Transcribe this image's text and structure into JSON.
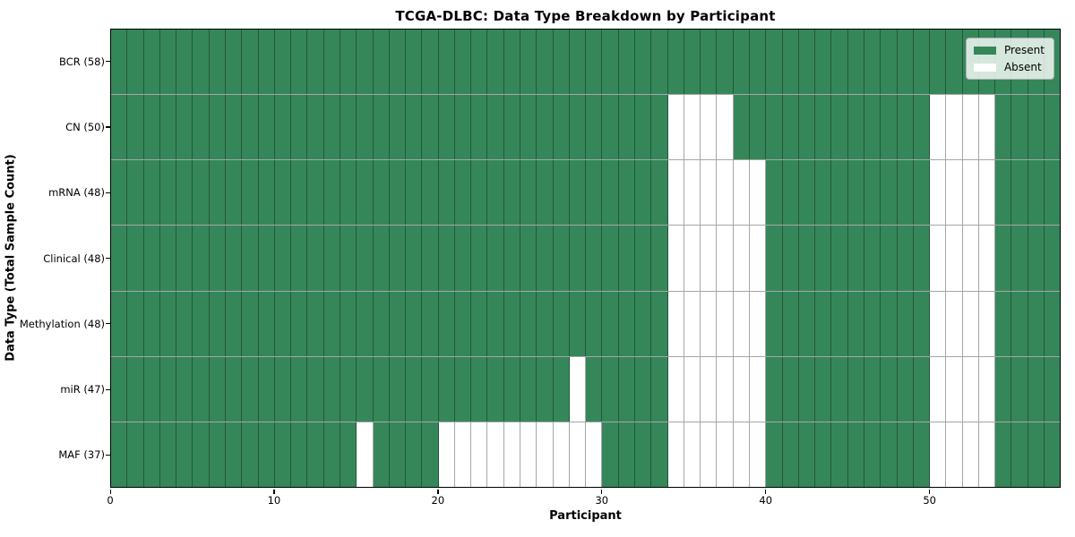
{
  "title": "TCGA-DLBC: Data Type Breakdown by Participant",
  "xaxis_label": "Participant",
  "yaxis_label": "Data Type (Total Sample Count)",
  "legend": {
    "present_label": "Present",
    "absent_label": "Absent"
  },
  "colors": {
    "present": "#35875a",
    "absent": "#ffffff",
    "cell_edge": "rgba(0,0,0,0.35)",
    "legend_bg": "rgba(255,255,255,0.8)",
    "plot_border": "#000000"
  },
  "chart_data": {
    "type": "heatmap",
    "title": "TCGA-DLBC: Data Type Breakdown by Participant",
    "xlabel": "Participant",
    "ylabel": "Data Type (Total Sample Count)",
    "n_participants": 58,
    "x_range": [
      0,
      58
    ],
    "x_ticks": [
      0,
      10,
      20,
      30,
      40,
      50
    ],
    "grid": true,
    "legend_position": "upper right",
    "legend_entries": [
      "Present",
      "Absent"
    ],
    "cell_states": [
      "present",
      "absent"
    ],
    "rows": [
      {
        "name": "BCR",
        "label": "BCR (58)",
        "total_samples": 58,
        "absent_participants": []
      },
      {
        "name": "CN",
        "label": "CN (50)",
        "total_samples": 50,
        "absent_participants": [
          34,
          35,
          36,
          37,
          50,
          51,
          52,
          53
        ]
      },
      {
        "name": "mRNA",
        "label": "mRNA (48)",
        "total_samples": 48,
        "absent_participants": [
          34,
          35,
          36,
          37,
          38,
          39,
          50,
          51,
          52,
          53
        ]
      },
      {
        "name": "Clinical",
        "label": "Clinical (48)",
        "total_samples": 48,
        "absent_participants": [
          34,
          35,
          36,
          37,
          38,
          39,
          50,
          51,
          52,
          53
        ]
      },
      {
        "name": "Methylation",
        "label": "Methylation (48)",
        "total_samples": 48,
        "absent_participants": [
          34,
          35,
          36,
          37,
          38,
          39,
          50,
          51,
          52,
          53
        ]
      },
      {
        "name": "miR",
        "label": "miR (47)",
        "total_samples": 47,
        "absent_participants": [
          28,
          34,
          35,
          36,
          37,
          38,
          39,
          50,
          51,
          52,
          53
        ]
      },
      {
        "name": "MAF",
        "label": "MAF (37)",
        "total_samples": 37,
        "absent_participants": [
          15,
          20,
          21,
          22,
          23,
          24,
          25,
          26,
          27,
          28,
          29,
          34,
          35,
          36,
          37,
          38,
          39,
          50,
          51,
          52,
          53
        ]
      }
    ]
  }
}
